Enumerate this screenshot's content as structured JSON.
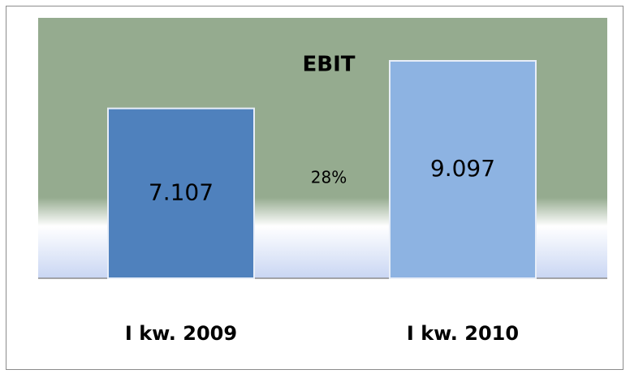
{
  "chart_data": {
    "type": "bar",
    "title": "EBIT",
    "categories": [
      "I kw. 2009",
      "I kw. 2010"
    ],
    "series": [
      {
        "name": "EBIT",
        "colors": [
          "#4f81bd",
          "#8db3e2"
        ],
        "values": [
          7.107,
          9.097
        ]
      }
    ],
    "annotation": "28%"
  }
}
